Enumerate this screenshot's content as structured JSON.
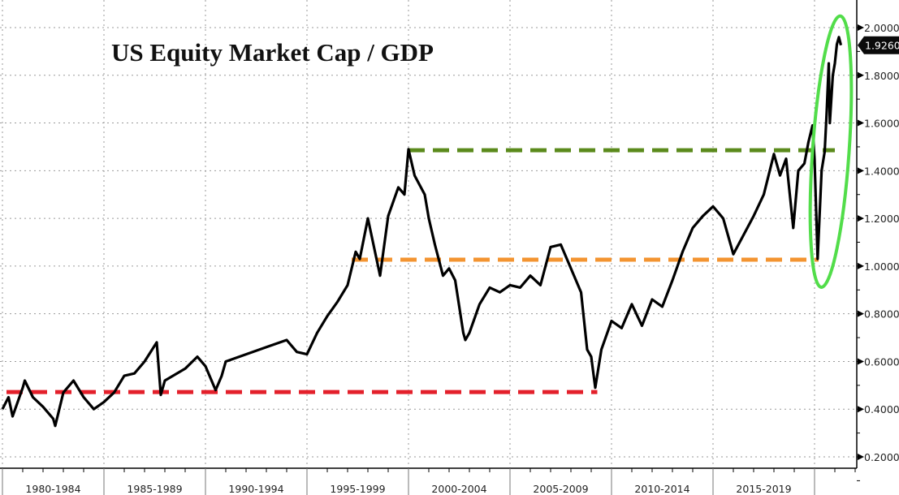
{
  "chart_data": {
    "type": "line",
    "title": "US Equity Market Cap / GDP",
    "xlabel": "",
    "ylabel": "",
    "ylim": [
      0.2,
      2.0
    ],
    "xlim": [
      1980,
      2022.2
    ],
    "grid": true,
    "y_ticks": [
      "2.0000",
      "1.8000",
      "1.6000",
      "1.4000",
      "1.2000",
      "1.0000",
      "0.8000",
      "0.6000",
      "0.4000",
      "0.2000"
    ],
    "y_tick_values": [
      2.0,
      1.8,
      1.6,
      1.4,
      1.2,
      1.0,
      0.8,
      0.6,
      0.4,
      0.2
    ],
    "x_period_labels": [
      "1980-1984",
      "1985-1989",
      "1990-1994",
      "1995-1999",
      "2000-2004",
      "2005-2009",
      "2010-2014",
      "2015-2019"
    ],
    "x_period_starts": [
      1980,
      1985,
      1990,
      1995,
      2000,
      2005,
      2010,
      2015,
      2020
    ],
    "last_value_label": "1.9260",
    "last_value": 1.926,
    "series": [
      {
        "name": "US Equity Market Cap / GDP",
        "color": "#000000",
        "x": [
          1980.0,
          1980.3,
          1980.5,
          1981.0,
          1981.1,
          1981.5,
          1982.0,
          1982.5,
          1982.6,
          1983.0,
          1983.5,
          1984.0,
          1984.5,
          1985.0,
          1985.5,
          1986.0,
          1986.5,
          1987.0,
          1987.6,
          1987.8,
          1988.0,
          1989.0,
          1989.6,
          1990.0,
          1990.5,
          1990.8,
          1991.0,
          1992.0,
          1993.0,
          1994.0,
          1994.5,
          1995.0,
          1995.5,
          1996.0,
          1996.5,
          1997.0,
          1997.4,
          1997.6,
          1998.0,
          1998.6,
          1999.0,
          1999.5,
          1999.8,
          2000.0,
          2000.3,
          2000.8,
          2001.0,
          2001.3,
          2001.7,
          2002.0,
          2002.3,
          2002.7,
          2002.8,
          2003.0,
          2003.5,
          2004.0,
          2004.5,
          2005.0,
          2005.5,
          2006.0,
          2006.5,
          2007.0,
          2007.5,
          2008.0,
          2008.5,
          2008.8,
          2009.0,
          2009.2,
          2009.5,
          2010.0,
          2010.5,
          2011.0,
          2011.5,
          2012.0,
          2012.5,
          2013.0,
          2013.5,
          2014.0,
          2014.5,
          2015.0,
          2015.5,
          2016.0,
          2016.5,
          2017.0,
          2017.5,
          2018.0,
          2018.3,
          2018.6,
          2018.95,
          2019.2,
          2019.5,
          2019.7,
          2019.9,
          2020.0,
          2020.15,
          2020.35,
          2020.5,
          2020.6,
          2020.7,
          2020.75,
          2020.9,
          2021.0,
          2021.1,
          2021.2,
          2021.3
        ],
        "y": [
          0.4,
          0.45,
          0.37,
          0.49,
          0.52,
          0.45,
          0.41,
          0.36,
          0.33,
          0.47,
          0.52,
          0.45,
          0.4,
          0.43,
          0.47,
          0.54,
          0.55,
          0.6,
          0.68,
          0.46,
          0.52,
          0.57,
          0.62,
          0.58,
          0.48,
          0.54,
          0.6,
          0.63,
          0.66,
          0.69,
          0.64,
          0.63,
          0.72,
          0.79,
          0.85,
          0.92,
          1.06,
          1.03,
          1.2,
          0.96,
          1.21,
          1.33,
          1.3,
          1.49,
          1.38,
          1.3,
          1.2,
          1.09,
          0.96,
          0.99,
          0.94,
          0.72,
          0.69,
          0.72,
          0.84,
          0.91,
          0.89,
          0.92,
          0.91,
          0.96,
          0.92,
          1.08,
          1.09,
          0.99,
          0.89,
          0.65,
          0.62,
          0.49,
          0.65,
          0.77,
          0.74,
          0.84,
          0.75,
          0.86,
          0.83,
          0.94,
          1.06,
          1.16,
          1.21,
          1.25,
          1.2,
          1.05,
          1.13,
          1.21,
          1.3,
          1.47,
          1.38,
          1.45,
          1.16,
          1.4,
          1.43,
          1.52,
          1.59,
          1.45,
          1.03,
          1.4,
          1.48,
          1.65,
          1.85,
          1.6,
          1.8,
          1.85,
          1.93,
          1.96,
          1.926
        ]
      }
    ],
    "annotations": [
      {
        "name": "red-dashed-level",
        "type": "hline",
        "value": 0.472,
        "x_from": 1980.2,
        "x_to": 2009.3,
        "color": "#e3202b"
      },
      {
        "name": "orange-dashed-level",
        "type": "hline",
        "value": 1.027,
        "x_from": 1997.2,
        "x_to": 2020.2,
        "color": "#f39431"
      },
      {
        "name": "green-dashed-level",
        "type": "hline",
        "value": 1.486,
        "x_from": 2000.0,
        "x_to": 2021.0,
        "color": "#5b8a1c"
      },
      {
        "name": "green-highlight-ellipse",
        "type": "ellipse",
        "x_center": 2020.8,
        "y_center": 1.48,
        "x_radius": 0.9,
        "y_radius": 0.57,
        "color": "#52dd4a"
      }
    ]
  }
}
